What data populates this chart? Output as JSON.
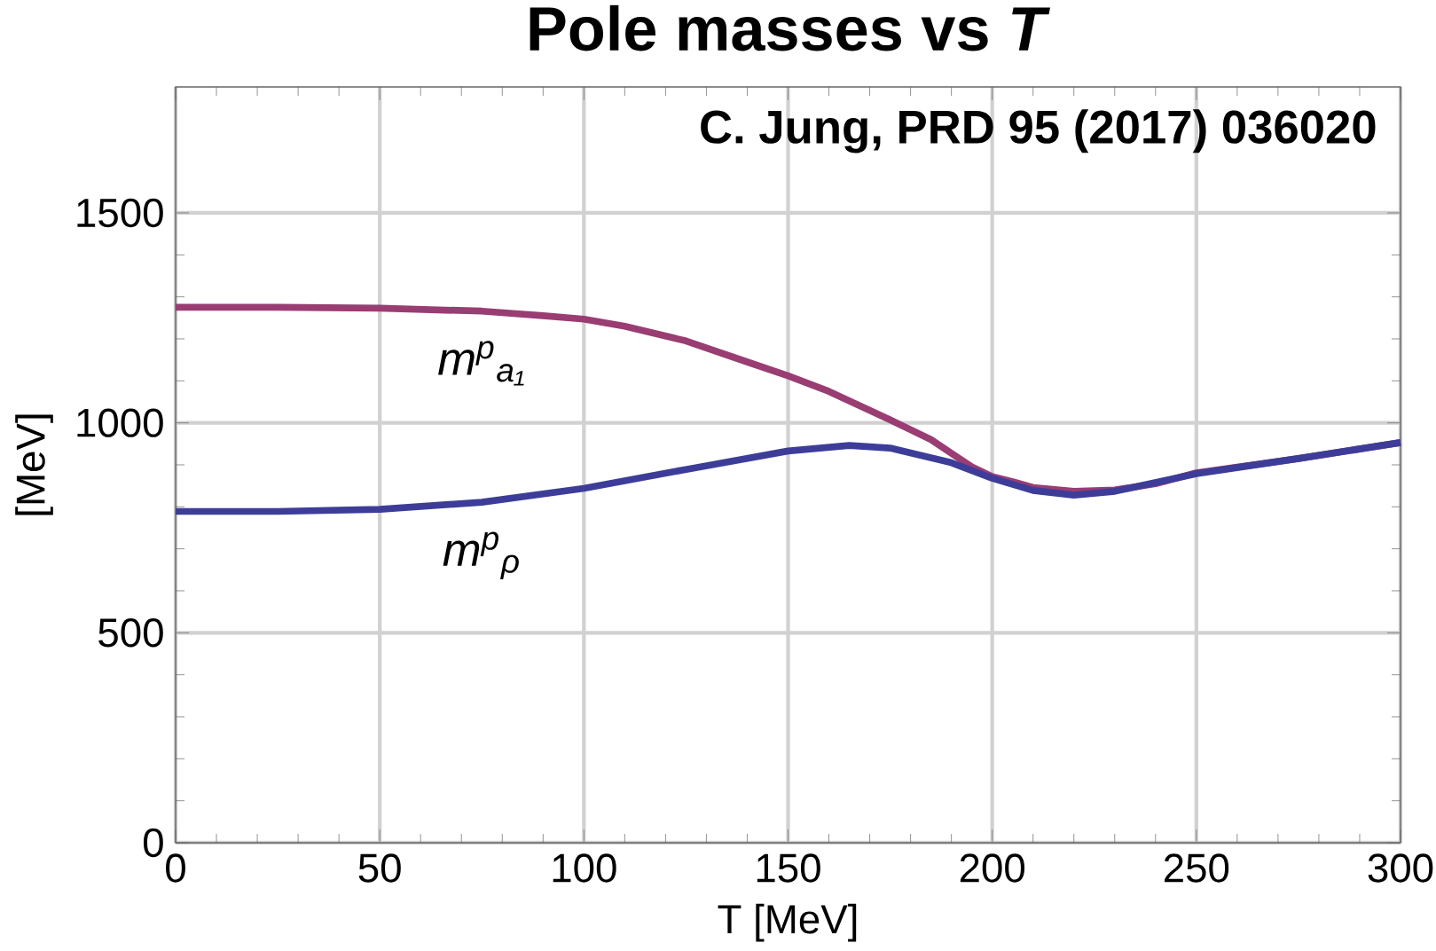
{
  "chart_data": {
    "type": "line",
    "title": "Pole masses vs *T*",
    "xlabel": "T [MeV]",
    "ylabel": "[MeV]",
    "annotations": [
      "C. Jung, PRD 95 (2017) 036020"
    ],
    "xlim": [
      0,
      300
    ],
    "ylim": [
      0,
      1800
    ],
    "xticks": [
      0,
      50,
      100,
      150,
      200,
      250,
      300
    ],
    "yticks": [
      0,
      500,
      1000,
      1500
    ],
    "grid": true,
    "legend": false,
    "marker": "none",
    "line_style": "solid",
    "series": [
      {
        "name": "m$^{p}$$_{a₁}$",
        "color": "#993d73",
        "x": [
          0,
          25,
          50,
          75,
          90,
          100,
          110,
          125,
          140,
          150,
          160,
          175,
          185,
          195,
          200,
          205,
          210,
          220,
          230,
          240,
          250,
          275,
          300
        ],
        "values": [
          1275,
          1275,
          1273,
          1266,
          1255,
          1247,
          1230,
          1195,
          1145,
          1112,
          1075,
          1007,
          960,
          895,
          872,
          860,
          846,
          837,
          840,
          855,
          881,
          915,
          953
        ]
      },
      {
        "name": "m$^{p}$$_{ρ}$",
        "color": "#3d3d99",
        "x": [
          0,
          25,
          50,
          75,
          100,
          125,
          150,
          165,
          175,
          190,
          200,
          210,
          220,
          230,
          250,
          275,
          300
        ],
        "values": [
          789,
          789,
          794,
          811,
          844,
          889,
          933,
          946,
          940,
          905,
          868,
          839,
          828,
          837,
          879,
          915,
          953
        ]
      }
    ]
  }
}
